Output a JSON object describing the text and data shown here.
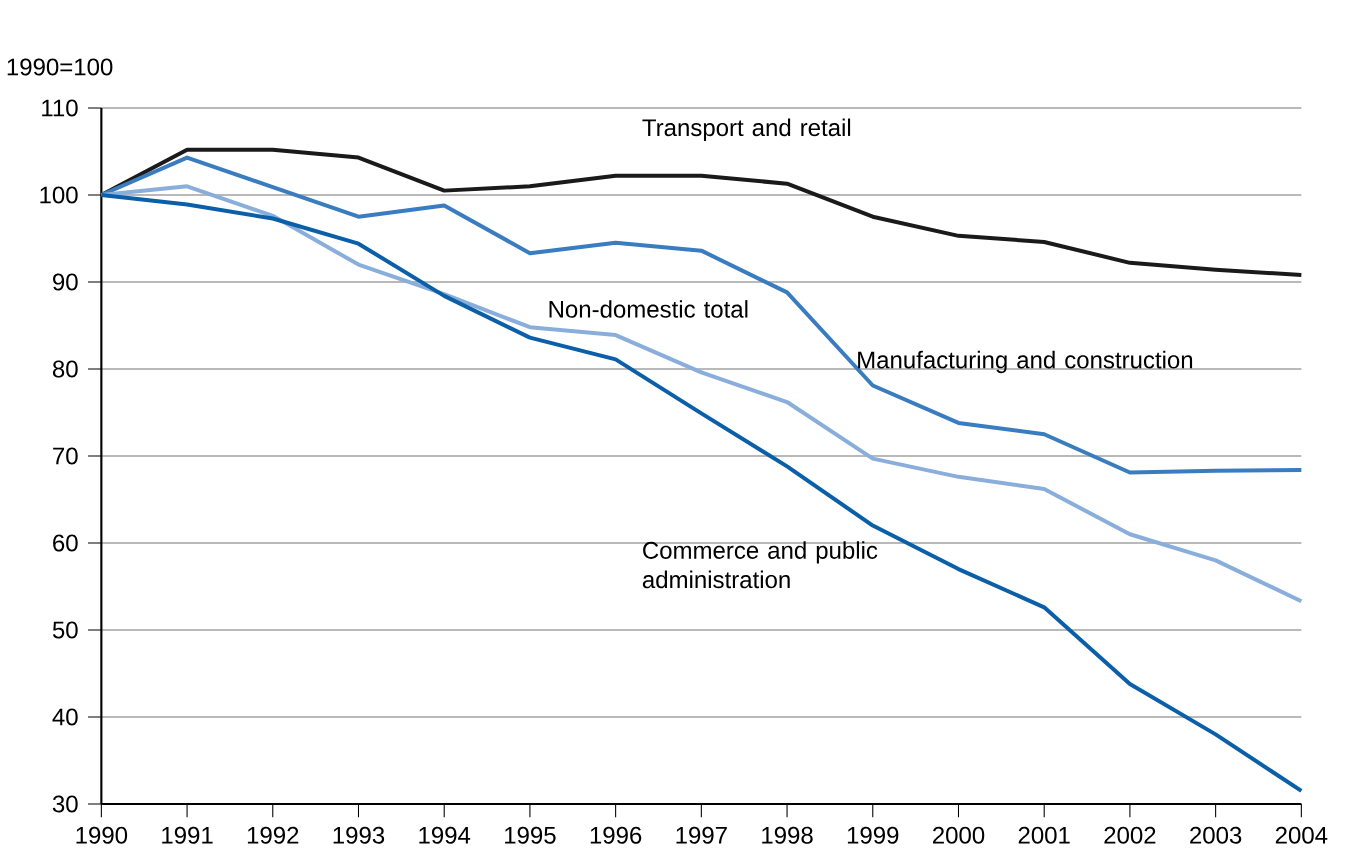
{
  "chart_data": {
    "type": "line",
    "ylabel": "1990=100",
    "x": [
      1990,
      1991,
      1992,
      1993,
      1994,
      1995,
      1996,
      1997,
      1998,
      1999,
      2000,
      2001,
      2002,
      2003,
      2004
    ],
    "xlim": [
      1990,
      2004
    ],
    "xticks": [
      1990,
      1991,
      1992,
      1993,
      1994,
      1995,
      1996,
      1997,
      1998,
      1999,
      2000,
      2001,
      2002,
      2003,
      2004
    ],
    "ylim": [
      30,
      110
    ],
    "yticks": [
      30,
      40,
      50,
      60,
      70,
      80,
      90,
      100,
      110
    ],
    "grid": "y",
    "marker": "none",
    "line_style": "solid",
    "series": [
      {
        "name": "Transport and retail",
        "color": "#1a1a1a",
        "values": [
          100,
          105.2,
          105.2,
          104.3,
          100.5,
          101,
          102.2,
          102.2,
          101.3,
          97.5,
          95.3,
          94.6,
          92.2,
          91.4,
          90.8
        ]
      },
      {
        "name": "Manufacturing and construction",
        "color": "#3a7cc0",
        "values": [
          100,
          104.3,
          100.9,
          97.5,
          98.8,
          93.3,
          94.5,
          93.6,
          88.8,
          78.1,
          73.8,
          72.5,
          68.1,
          68.3,
          68.4
        ]
      },
      {
        "name": "Non-domestic total",
        "color": "#8aaedc",
        "values": [
          100,
          101,
          97.6,
          92,
          88.6,
          84.8,
          83.9,
          79.6,
          76.2,
          69.7,
          67.6,
          66.2,
          61,
          58,
          53.3
        ]
      },
      {
        "name": "Commerce and public administration",
        "color": "#0a5fa8",
        "values": [
          100,
          98.9,
          97.3,
          94.4,
          88.4,
          83.6,
          81.1,
          74.9,
          68.8,
          62,
          57,
          52.6,
          43.8,
          38,
          31.5
        ]
      }
    ]
  }
}
